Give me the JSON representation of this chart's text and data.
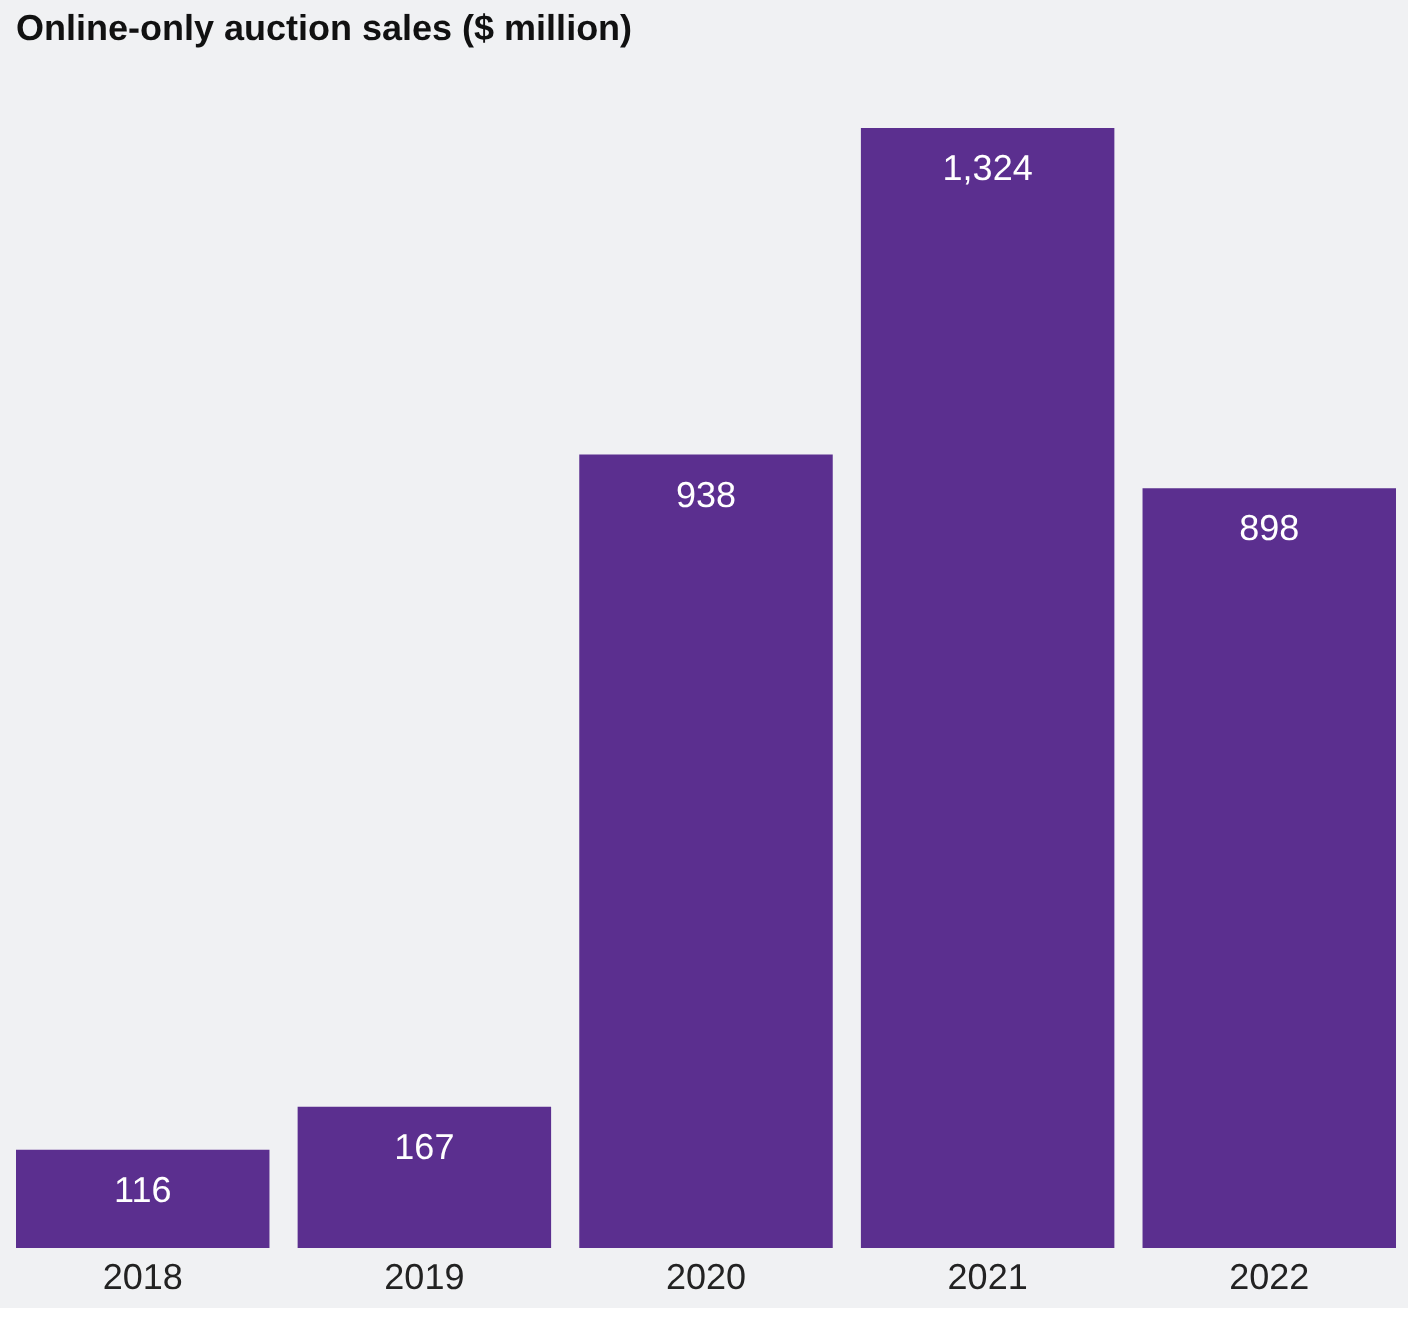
{
  "chart_data": {
    "type": "bar",
    "title": "Online-only auction sales ($ million)",
    "categories": [
      "2018",
      "2019",
      "2020",
      "2021",
      "2022"
    ],
    "values": [
      116,
      167,
      938,
      1324,
      898
    ],
    "value_labels": [
      "116",
      "167",
      "938",
      "1,324",
      "898"
    ],
    "color": "#5b2f8f"
  }
}
